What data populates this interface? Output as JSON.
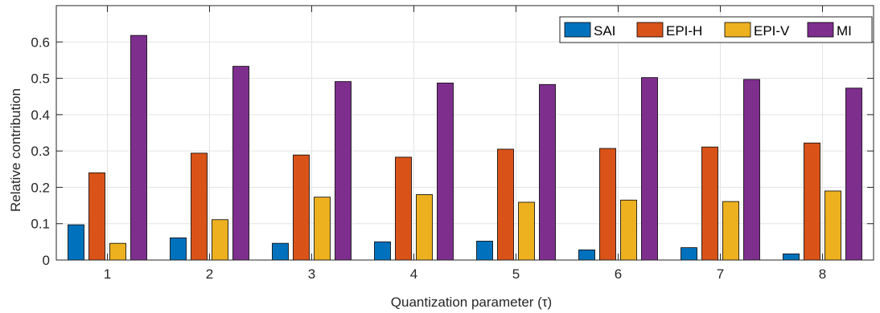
{
  "chart_data": {
    "type": "bar",
    "categories": [
      "1",
      "2",
      "3",
      "4",
      "5",
      "6",
      "7",
      "8"
    ],
    "series": [
      {
        "name": "SAI",
        "color": "#0072BD",
        "values": [
          0.097,
          0.061,
          0.046,
          0.05,
          0.052,
          0.028,
          0.034,
          0.017
        ]
      },
      {
        "name": "EPI-H",
        "color": "#D95319",
        "values": [
          0.24,
          0.294,
          0.289,
          0.283,
          0.305,
          0.307,
          0.311,
          0.322
        ]
      },
      {
        "name": "EPI-V",
        "color": "#EDB120",
        "values": [
          0.046,
          0.111,
          0.173,
          0.18,
          0.159,
          0.165,
          0.161,
          0.19
        ]
      },
      {
        "name": "MI",
        "color": "#7E2F8E",
        "values": [
          0.618,
          0.533,
          0.491,
          0.487,
          0.483,
          0.502,
          0.497,
          0.473
        ]
      }
    ],
    "xlabel": "Quantization parameter (τ)",
    "ylabel": "Relative contribution",
    "ylim": [
      0,
      0.7
    ],
    "yticks": [
      0,
      0.1,
      0.2,
      0.3,
      0.4,
      0.5,
      0.6
    ],
    "ytick_labels": [
      "0",
      "0.1",
      "0.2",
      "0.3",
      "0.4",
      "0.5",
      "0.6"
    ],
    "grid": true,
    "legend_position": "top-right",
    "legend_orientation": "horizontal"
  }
}
